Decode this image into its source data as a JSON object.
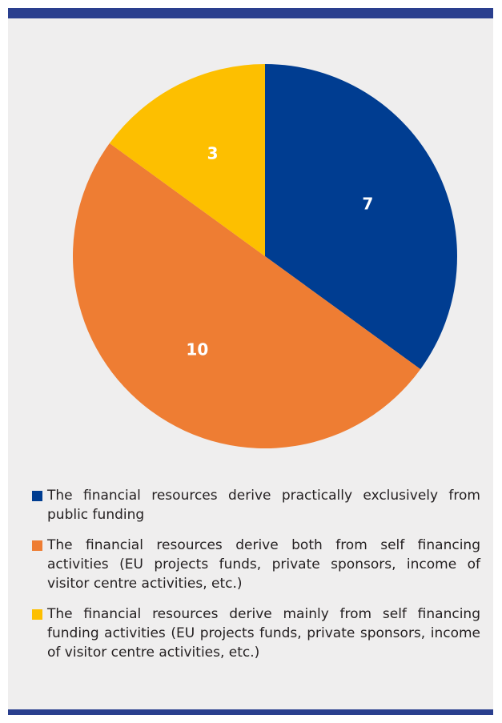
{
  "colors": {
    "frame": "#2a3f8e",
    "panel": "#efeeee",
    "public": "#003d91",
    "both": "#ee7d33",
    "self": "#fdbf00",
    "label": "#ffffff"
  },
  "chart_data": {
    "type": "pie",
    "title": "",
    "start": "12 o'clock, clockwise",
    "series": [
      {
        "value": 7,
        "color": "#003d91",
        "label": "7"
      },
      {
        "value": 10,
        "color": "#ee7d33",
        "label": "10"
      },
      {
        "value": 3,
        "color": "#fdbf00",
        "label": "3"
      }
    ],
    "legend": [
      {
        "color": "#003d91",
        "text": "The financial resources derive practically exclusively from public funding"
      },
      {
        "color": "#ee7d33",
        "text": "The financial resources derive both from self financing activities (EU projects funds, private sponsors, income of visitor centre activities, etc.)"
      },
      {
        "color": "#fdbf00",
        "text": "The financial resources derive mainly from self financing funding activities (EU projects funds, private sponsors, income of visitor centre activities, etc.)"
      }
    ],
    "legend_position": "bottom"
  }
}
